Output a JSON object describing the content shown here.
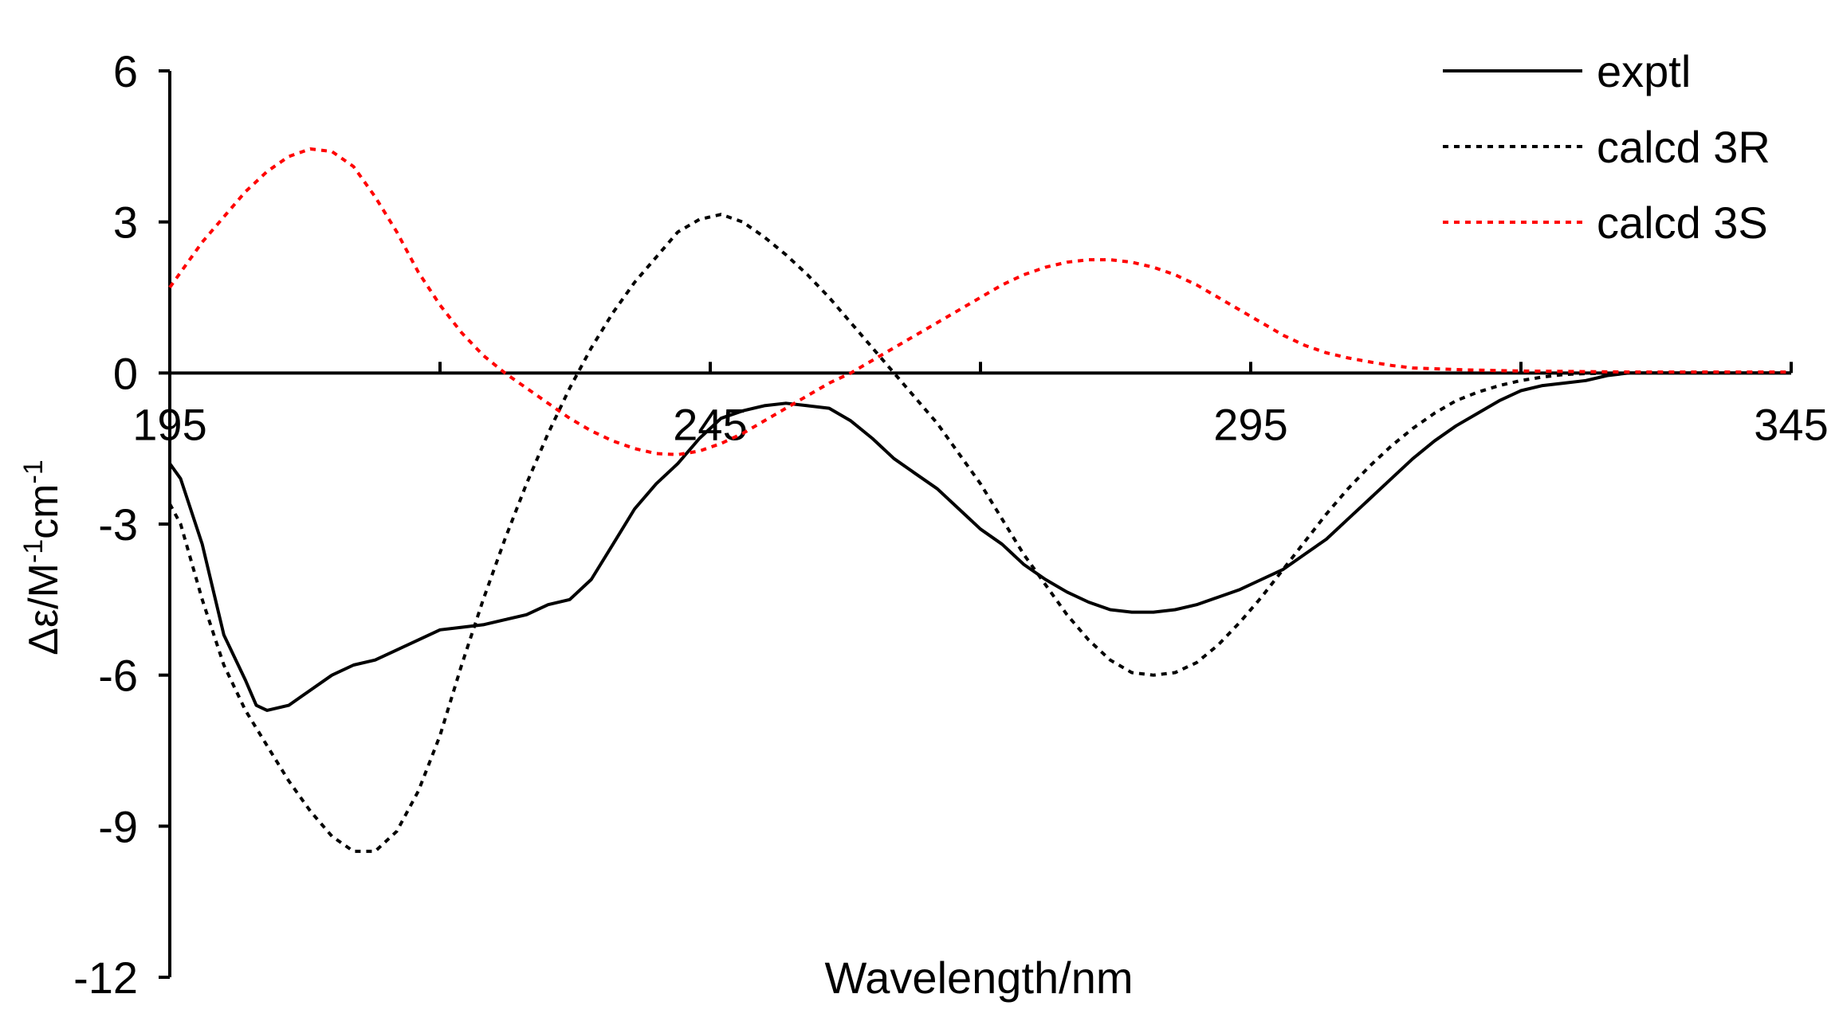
{
  "chart_data": {
    "type": "line",
    "xlabel": "Wavelength/nm",
    "ylabel": "Δε/M",
    "ylabel_parts": [
      "Δε/M",
      "-1",
      "cm",
      "-1"
    ],
    "xlim": [
      195,
      345
    ],
    "ylim": [
      -12,
      6
    ],
    "xticks": [
      195,
      245,
      295,
      345
    ],
    "yticks": [
      6,
      3,
      0,
      -3,
      -6,
      -9,
      -12
    ],
    "x_minor_ticks": [
      220,
      270,
      320
    ],
    "grid": false,
    "legend_position": "top-right",
    "series": [
      {
        "name": "exptl",
        "color": "#000000",
        "style": "solid",
        "points": [
          [
            195,
            -1.8
          ],
          [
            196,
            -2.1
          ],
          [
            198,
            -3.4
          ],
          [
            200,
            -5.2
          ],
          [
            202,
            -6.1
          ],
          [
            203,
            -6.6
          ],
          [
            204,
            -6.7
          ],
          [
            206,
            -6.6
          ],
          [
            208,
            -6.3
          ],
          [
            210,
            -6.0
          ],
          [
            212,
            -5.8
          ],
          [
            214,
            -5.7
          ],
          [
            216,
            -5.5
          ],
          [
            218,
            -5.3
          ],
          [
            220,
            -5.1
          ],
          [
            222,
            -5.05
          ],
          [
            224,
            -5.0
          ],
          [
            226,
            -4.9
          ],
          [
            228,
            -4.8
          ],
          [
            230,
            -4.6
          ],
          [
            232,
            -4.5
          ],
          [
            234,
            -4.1
          ],
          [
            236,
            -3.4
          ],
          [
            238,
            -2.7
          ],
          [
            240,
            -2.2
          ],
          [
            242,
            -1.8
          ],
          [
            244,
            -1.3
          ],
          [
            246,
            -0.9
          ],
          [
            248,
            -0.75
          ],
          [
            250,
            -0.65
          ],
          [
            252,
            -0.6
          ],
          [
            254,
            -0.65
          ],
          [
            256,
            -0.7
          ],
          [
            258,
            -0.95
          ],
          [
            260,
            -1.3
          ],
          [
            262,
            -1.7
          ],
          [
            264,
            -2.0
          ],
          [
            266,
            -2.3
          ],
          [
            268,
            -2.7
          ],
          [
            270,
            -3.1
          ],
          [
            272,
            -3.4
          ],
          [
            274,
            -3.8
          ],
          [
            276,
            -4.1
          ],
          [
            278,
            -4.35
          ],
          [
            280,
            -4.55
          ],
          [
            282,
            -4.7
          ],
          [
            284,
            -4.75
          ],
          [
            286,
            -4.75
          ],
          [
            288,
            -4.7
          ],
          [
            290,
            -4.6
          ],
          [
            292,
            -4.45
          ],
          [
            294,
            -4.3
          ],
          [
            296,
            -4.1
          ],
          [
            298,
            -3.9
          ],
          [
            300,
            -3.6
          ],
          [
            302,
            -3.3
          ],
          [
            304,
            -2.9
          ],
          [
            306,
            -2.5
          ],
          [
            308,
            -2.1
          ],
          [
            310,
            -1.7
          ],
          [
            312,
            -1.35
          ],
          [
            314,
            -1.05
          ],
          [
            316,
            -0.8
          ],
          [
            318,
            -0.55
          ],
          [
            320,
            -0.35
          ],
          [
            322,
            -0.25
          ],
          [
            324,
            -0.2
          ],
          [
            326,
            -0.15
          ],
          [
            328,
            -0.05
          ],
          [
            330,
            0
          ],
          [
            345,
            0
          ]
        ]
      },
      {
        "name": "calcd 3R",
        "color": "#000000",
        "style": "dotted",
        "points": [
          [
            195,
            -2.6
          ],
          [
            196,
            -3.0
          ],
          [
            198,
            -4.5
          ],
          [
            200,
            -5.8
          ],
          [
            202,
            -6.7
          ],
          [
            204,
            -7.4
          ],
          [
            206,
            -8.1
          ],
          [
            208,
            -8.7
          ],
          [
            210,
            -9.2
          ],
          [
            212,
            -9.5
          ],
          [
            214,
            -9.5
          ],
          [
            216,
            -9.1
          ],
          [
            218,
            -8.3
          ],
          [
            220,
            -7.2
          ],
          [
            222,
            -5.8
          ],
          [
            224,
            -4.5
          ],
          [
            226,
            -3.3
          ],
          [
            228,
            -2.2
          ],
          [
            230,
            -1.2
          ],
          [
            232,
            -0.3
          ],
          [
            234,
            0.5
          ],
          [
            236,
            1.2
          ],
          [
            238,
            1.8
          ],
          [
            240,
            2.3
          ],
          [
            242,
            2.8
          ],
          [
            244,
            3.05
          ],
          [
            246,
            3.15
          ],
          [
            248,
            3.0
          ],
          [
            250,
            2.7
          ],
          [
            252,
            2.35
          ],
          [
            254,
            1.95
          ],
          [
            256,
            1.5
          ],
          [
            258,
            1.0
          ],
          [
            260,
            0.5
          ],
          [
            262,
            0.0
          ],
          [
            264,
            -0.5
          ],
          [
            266,
            -1.0
          ],
          [
            268,
            -1.6
          ],
          [
            270,
            -2.2
          ],
          [
            272,
            -2.9
          ],
          [
            274,
            -3.6
          ],
          [
            276,
            -4.2
          ],
          [
            278,
            -4.8
          ],
          [
            280,
            -5.3
          ],
          [
            282,
            -5.7
          ],
          [
            284,
            -5.95
          ],
          [
            286,
            -6.0
          ],
          [
            288,
            -5.95
          ],
          [
            290,
            -5.75
          ],
          [
            292,
            -5.4
          ],
          [
            294,
            -4.95
          ],
          [
            296,
            -4.45
          ],
          [
            298,
            -3.9
          ],
          [
            300,
            -3.35
          ],
          [
            302,
            -2.8
          ],
          [
            304,
            -2.3
          ],
          [
            306,
            -1.85
          ],
          [
            308,
            -1.45
          ],
          [
            310,
            -1.1
          ],
          [
            312,
            -0.8
          ],
          [
            314,
            -0.55
          ],
          [
            316,
            -0.38
          ],
          [
            318,
            -0.25
          ],
          [
            320,
            -0.15
          ],
          [
            322,
            -0.08
          ],
          [
            324,
            -0.03
          ],
          [
            326,
            -0.01
          ],
          [
            330,
            0
          ],
          [
            345,
            0
          ]
        ]
      },
      {
        "name": "calcd 3S",
        "color": "#ff0000",
        "style": "dotted",
        "points": [
          [
            195,
            1.7
          ],
          [
            196,
            2.0
          ],
          [
            198,
            2.6
          ],
          [
            200,
            3.1
          ],
          [
            202,
            3.6
          ],
          [
            204,
            4.0
          ],
          [
            206,
            4.3
          ],
          [
            208,
            4.45
          ],
          [
            210,
            4.4
          ],
          [
            212,
            4.1
          ],
          [
            214,
            3.5
          ],
          [
            216,
            2.8
          ],
          [
            218,
            2.0
          ],
          [
            220,
            1.35
          ],
          [
            222,
            0.8
          ],
          [
            224,
            0.35
          ],
          [
            226,
            0.0
          ],
          [
            228,
            -0.3
          ],
          [
            230,
            -0.6
          ],
          [
            232,
            -0.9
          ],
          [
            234,
            -1.15
          ],
          [
            236,
            -1.35
          ],
          [
            238,
            -1.5
          ],
          [
            240,
            -1.6
          ],
          [
            242,
            -1.62
          ],
          [
            244,
            -1.55
          ],
          [
            246,
            -1.4
          ],
          [
            248,
            -1.2
          ],
          [
            250,
            -0.95
          ],
          [
            252,
            -0.7
          ],
          [
            254,
            -0.45
          ],
          [
            256,
            -0.2
          ],
          [
            258,
            0.0
          ],
          [
            260,
            0.25
          ],
          [
            262,
            0.5
          ],
          [
            264,
            0.75
          ],
          [
            266,
            1.0
          ],
          [
            268,
            1.25
          ],
          [
            270,
            1.5
          ],
          [
            272,
            1.75
          ],
          [
            274,
            1.95
          ],
          [
            276,
            2.1
          ],
          [
            278,
            2.2
          ],
          [
            280,
            2.25
          ],
          [
            282,
            2.25
          ],
          [
            284,
            2.2
          ],
          [
            286,
            2.1
          ],
          [
            288,
            1.95
          ],
          [
            290,
            1.75
          ],
          [
            292,
            1.5
          ],
          [
            294,
            1.25
          ],
          [
            296,
            1.0
          ],
          [
            298,
            0.75
          ],
          [
            300,
            0.55
          ],
          [
            302,
            0.4
          ],
          [
            304,
            0.3
          ],
          [
            306,
            0.22
          ],
          [
            308,
            0.15
          ],
          [
            310,
            0.1
          ],
          [
            315,
            0.06
          ],
          [
            320,
            0.04
          ],
          [
            330,
            0.02
          ],
          [
            345,
            0.02
          ]
        ]
      }
    ]
  }
}
